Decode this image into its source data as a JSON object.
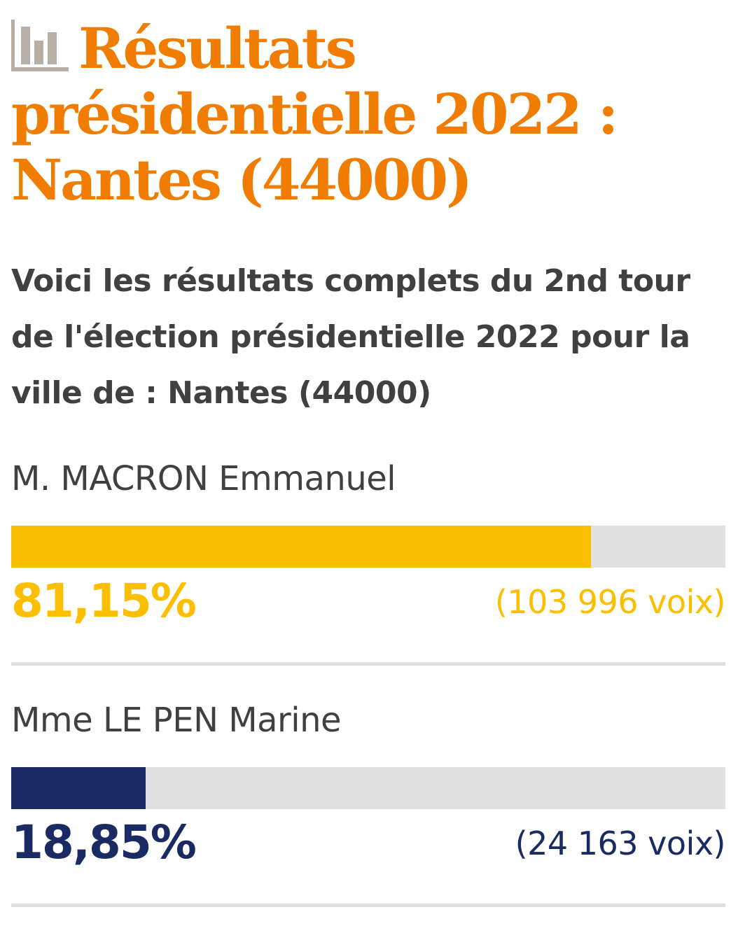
{
  "header": {
    "icon": "bar-chart-icon",
    "title": "Résultats présidentielle 2022 : Nantes (44000)",
    "title_color": "#f07c00"
  },
  "intro": {
    "text": "Voici les résultats complets du 2nd tour de l'élection présidentielle 2022 pour la ville de : Nantes (44000)"
  },
  "candidates": [
    {
      "name": "M. MACRON Emmanuel",
      "percent_label": "81,15%",
      "percent": 81.15,
      "votes_label": "(103 996 voix)",
      "color": "#fbbf00"
    },
    {
      "name": "Mme LE PEN Marine",
      "percent_label": "18,85%",
      "percent": 18.85,
      "votes_label": "(24 163 voix)",
      "color": "#1a2a63"
    }
  ],
  "colors": {
    "text": "#404040",
    "track": "#e0e0e0",
    "icon": "#b8afa6"
  }
}
